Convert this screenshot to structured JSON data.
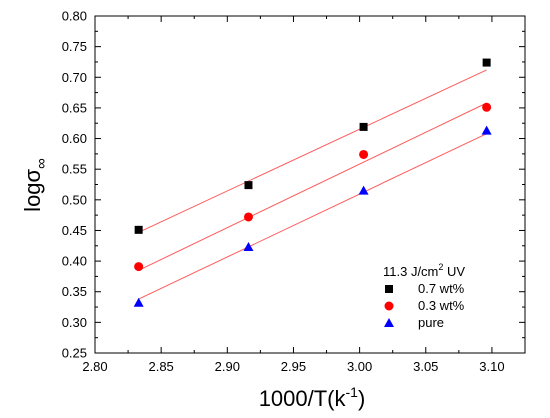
{
  "chart_data": {
    "type": "scatter",
    "xlabel": "1000/T(k",
    "xlabel_sup": "-1",
    "xlabel_close": ")",
    "ylabel": "logσ",
    "ylabel_sub": "∞",
    "xlim": [
      2.8,
      3.125
    ],
    "ylim": [
      0.25,
      0.8
    ],
    "x_ticks": [
      "2.80",
      "2.85",
      "2.90",
      "2.95",
      "3.00",
      "3.05",
      "3.10"
    ],
    "y_ticks": [
      "0.25",
      "0.30",
      "0.35",
      "0.40",
      "0.45",
      "0.50",
      "0.55",
      "0.60",
      "0.65",
      "0.70",
      "0.75",
      "0.80"
    ],
    "grid": false,
    "legend_position": "bottom-right",
    "legend": {
      "title": "11.3 J/cm",
      "title_sup": "2",
      "title_suffix": " UV"
    },
    "fit_line_color": "#ff5a5a",
    "series": [
      {
        "name": "0.7 wt%",
        "marker": "square",
        "color": "#000000",
        "x": [
          2.833,
          2.916,
          3.003,
          3.096
        ],
        "y": [
          0.451,
          0.524,
          0.619,
          0.724
        ],
        "fit": {
          "x": [
            2.833,
            3.096
          ],
          "y": [
            0.447,
            0.712
          ]
        }
      },
      {
        "name": "0.3 wt%",
        "marker": "circle",
        "color": "#ff0000",
        "x": [
          2.833,
          2.916,
          3.003,
          3.096
        ],
        "y": [
          0.391,
          0.472,
          0.574,
          0.651
        ],
        "fit": {
          "x": [
            2.833,
            3.096
          ],
          "y": [
            0.385,
            0.658
          ]
        }
      },
      {
        "name": "pure",
        "marker": "triangle",
        "color": "#0000ff",
        "x": [
          2.833,
          2.916,
          3.003,
          3.096
        ],
        "y": [
          0.332,
          0.423,
          0.515,
          0.613
        ],
        "fit": {
          "x": [
            2.833,
            3.096
          ],
          "y": [
            0.338,
            0.608
          ]
        }
      }
    ]
  }
}
